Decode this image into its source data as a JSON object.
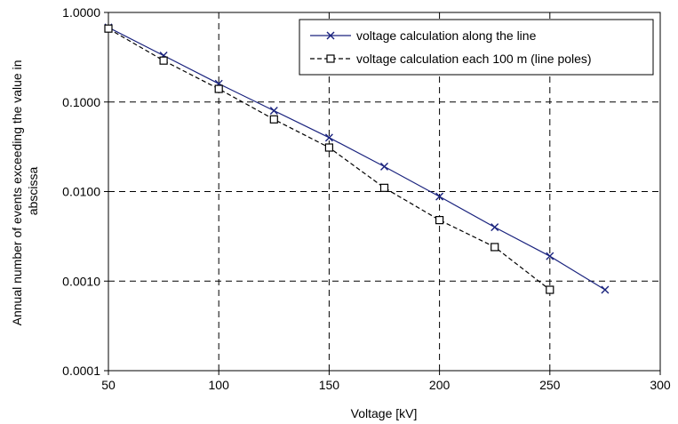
{
  "chart_data": {
    "type": "line",
    "xlabel": "Voltage [kV]",
    "ylabel_lines": [
      "Annual number of events exceeding the value in",
      "abscissa"
    ],
    "xlim": [
      50,
      300
    ],
    "ylim": [
      0.0001,
      1
    ],
    "y_scale": "log",
    "x_ticks": [
      50,
      100,
      150,
      200,
      250,
      300
    ],
    "x_tick_labels": [
      "50",
      "100",
      "150",
      "200",
      "250",
      "300"
    ],
    "y_ticks": [
      0.0001,
      0.001,
      0.01,
      0.1,
      1
    ],
    "y_tick_labels": [
      "0.0001",
      "0.0010",
      "0.0100",
      "0.1000",
      "1.0000"
    ],
    "grid": true,
    "legend_position": "top-right",
    "series": [
      {
        "name": "voltage calculation along the line",
        "marker": "x",
        "line_style": "solid",
        "color": "#1a237e",
        "x": [
          50,
          75,
          100,
          125,
          150,
          175,
          200,
          225,
          250,
          275
        ],
        "y": [
          0.68,
          0.33,
          0.16,
          0.08,
          0.04,
          0.019,
          0.0088,
          0.004,
          0.0019,
          0.0008
        ]
      },
      {
        "name": "voltage calculation each 100 m (line poles)",
        "marker": "square",
        "line_style": "dashed",
        "color": "#000000",
        "x": [
          50,
          75,
          100,
          125,
          150,
          175,
          200,
          225,
          250
        ],
        "y": [
          0.66,
          0.29,
          0.14,
          0.064,
          0.031,
          0.011,
          0.0048,
          0.0024,
          0.0008
        ]
      }
    ]
  }
}
